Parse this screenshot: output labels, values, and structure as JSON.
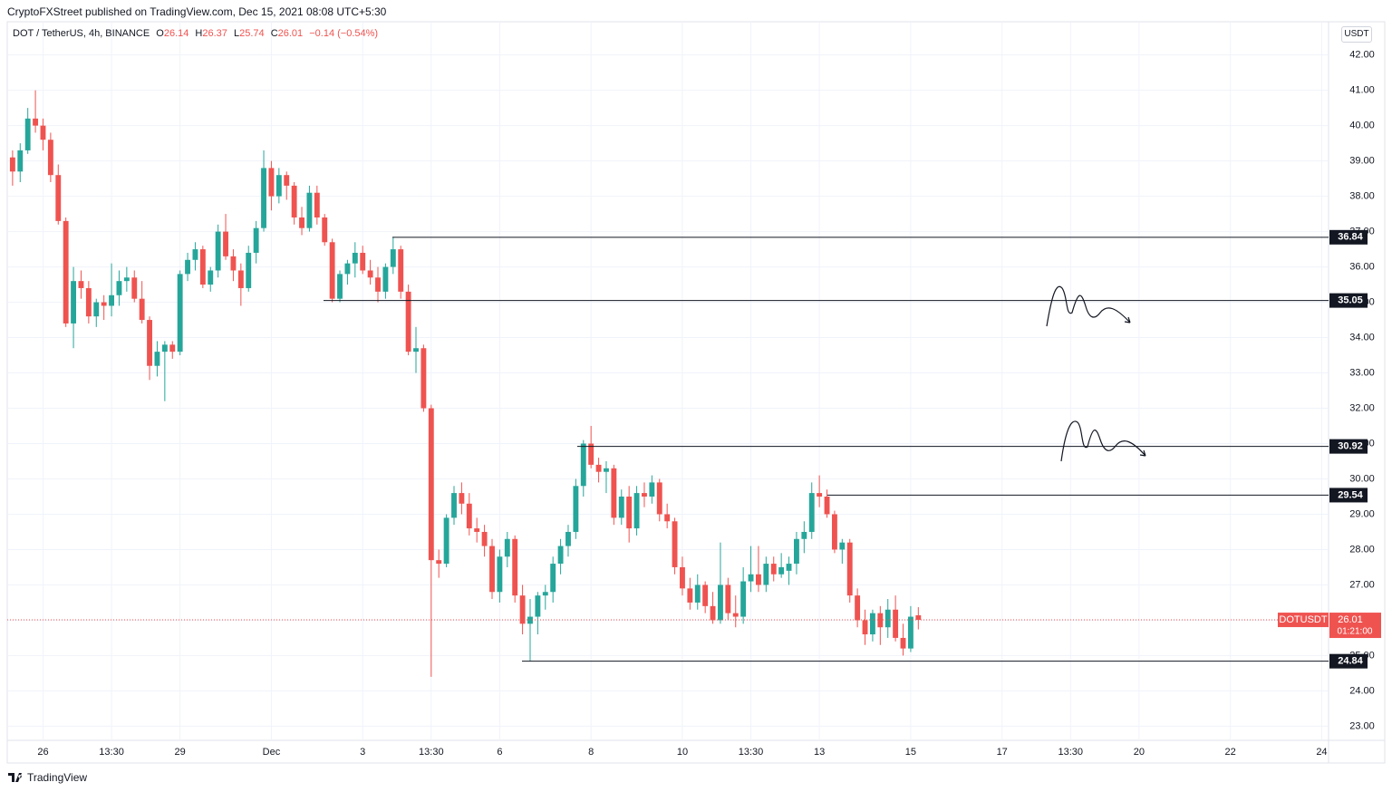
{
  "header": "CryptoFXStreet published on TradingView.com, Dec 15, 2021 08:08 UTC+5:30",
  "chart_data": {
    "type": "candlestick",
    "legend": {
      "symbol": "DOT / TetherUS, 4h, BINANCE",
      "ohlc": [
        {
          "label": "O",
          "value": 26.14
        },
        {
          "label": "H",
          "value": 26.37
        },
        {
          "label": "L",
          "value": 25.74
        },
        {
          "label": "C",
          "value": 26.01
        }
      ],
      "change": "−0.14 (−0.54%)"
    },
    "currency": "USDT",
    "up_color": "#26a69a",
    "down_color": "#ef5350",
    "open": [
      39.1,
      38.7,
      39.3,
      40.2,
      40.0,
      39.6,
      38.6,
      37.3,
      34.4,
      35.6,
      35.4,
      34.6,
      35.0,
      34.9,
      35.2,
      35.6,
      35.7,
      35.1,
      34.5,
      33.2,
      33.6,
      33.8,
      33.6,
      35.8,
      36.2,
      36.5,
      35.5,
      35.9,
      37.0,
      36.3,
      35.9,
      35.4,
      36.4,
      37.1,
      38.8,
      38.0,
      38.6,
      38.3,
      37.4,
      37.1,
      38.1,
      37.4,
      36.7,
      35.1,
      35.8,
      36.1,
      36.4,
      35.9,
      35.7,
      35.3,
      36.0,
      36.5,
      35.3,
      33.6,
      33.7,
      32.0,
      27.7,
      27.6,
      28.9,
      29.6,
      29.3,
      28.6,
      28.5,
      28.1,
      26.8,
      27.8,
      28.3,
      26.7,
      25.9,
      26.1,
      26.7,
      26.8,
      27.6,
      28.1,
      28.5,
      29.8,
      31.0,
      30.4,
      30.2,
      30.3,
      28.9,
      29.5,
      28.6,
      29.6,
      29.5,
      29.9,
      29.0,
      28.8,
      27.5,
      26.9,
      26.5,
      27.0,
      26.4,
      26.0,
      27.0,
      26.2,
      26.1,
      27.1,
      27.3,
      27.0,
      27.6,
      27.3,
      27.4,
      27.6,
      28.3,
      28.5,
      29.6,
      29.5,
      29.0,
      28.0,
      28.2,
      26.7,
      26.0,
      25.6,
      26.2,
      25.8,
      26.3,
      25.5,
      25.2,
      26.14
    ],
    "high": [
      39.3,
      39.5,
      40.5,
      41.0,
      40.2,
      39.8,
      38.9,
      37.4,
      36.0,
      35.9,
      35.6,
      35.1,
      35.2,
      36.1,
      35.9,
      36.0,
      35.9,
      35.6,
      34.6,
      33.9,
      33.9,
      33.9,
      35.9,
      36.4,
      36.7,
      36.6,
      36.0,
      37.2,
      37.5,
      36.5,
      36.1,
      36.6,
      37.3,
      39.3,
      39.0,
      38.8,
      38.7,
      38.4,
      37.7,
      38.3,
      38.3,
      37.5,
      36.8,
      35.9,
      36.2,
      36.7,
      36.6,
      36.2,
      36.0,
      36.1,
      36.84,
      36.6,
      35.5,
      34.3,
      33.8,
      32.1,
      28.0,
      29.0,
      29.8,
      29.9,
      29.6,
      28.9,
      28.7,
      28.3,
      28.0,
      28.5,
      28.4,
      27.0,
      26.6,
      26.8,
      27.0,
      27.8,
      28.3,
      28.7,
      30.0,
      31.1,
      31.5,
      30.6,
      30.5,
      30.4,
      29.7,
      29.8,
      29.8,
      29.9,
      30.1,
      30.0,
      29.3,
      28.9,
      27.8,
      27.2,
      27.3,
      27.1,
      26.8,
      28.2,
      27.2,
      26.7,
      27.5,
      28.1,
      28.1,
      27.8,
      27.8,
      27.9,
      27.8,
      28.5,
      28.8,
      29.9,
      30.1,
      29.7,
      29.1,
      28.3,
      28.3,
      26.9,
      26.3,
      26.3,
      26.4,
      26.6,
      26.7,
      25.9,
      26.4,
      26.37
    ],
    "low": [
      38.3,
      38.4,
      39.2,
      39.8,
      39.3,
      38.4,
      37.2,
      34.3,
      33.7,
      35.1,
      34.4,
      34.3,
      34.5,
      34.6,
      34.9,
      35.3,
      35.0,
      34.4,
      32.8,
      32.9,
      32.2,
      33.4,
      33.5,
      35.6,
      35.9,
      35.4,
      35.3,
      35.7,
      36.2,
      35.6,
      34.9,
      35.3,
      36.1,
      37.0,
      37.6,
      37.8,
      37.9,
      37.2,
      36.9,
      37.0,
      37.2,
      36.6,
      35.0,
      35.0,
      35.5,
      35.7,
      35.8,
      35.5,
      35.0,
      35.1,
      35.8,
      35.1,
      33.5,
      33.0,
      31.9,
      24.4,
      27.2,
      27.5,
      28.7,
      29.0,
      28.4,
      28.2,
      27.8,
      26.6,
      26.5,
      27.5,
      26.5,
      25.6,
      24.84,
      25.6,
      26.3,
      26.5,
      27.3,
      27.8,
      28.3,
      29.5,
      30.3,
      29.9,
      29.6,
      28.7,
      28.7,
      28.2,
      28.4,
      29.2,
      29.3,
      28.8,
      28.6,
      27.3,
      26.7,
      26.3,
      26.3,
      26.2,
      25.9,
      25.9,
      26.0,
      25.8,
      25.9,
      26.8,
      26.8,
      26.8,
      27.1,
      27.2,
      27.0,
      27.3,
      27.9,
      28.3,
      29.2,
      28.9,
      27.9,
      27.6,
      26.5,
      25.8,
      25.3,
      25.4,
      25.3,
      25.5,
      25.4,
      25.0,
      25.1,
      25.74
    ],
    "close": [
      38.7,
      39.3,
      40.2,
      40.0,
      39.6,
      38.6,
      37.3,
      34.4,
      35.6,
      35.4,
      34.6,
      35.0,
      34.9,
      35.2,
      35.6,
      35.7,
      35.1,
      34.5,
      33.2,
      33.6,
      33.8,
      33.6,
      35.8,
      36.2,
      36.5,
      35.5,
      35.9,
      37.0,
      36.3,
      35.9,
      35.4,
      36.4,
      37.1,
      38.8,
      38.0,
      38.6,
      38.3,
      37.4,
      37.1,
      38.1,
      37.4,
      36.7,
      35.1,
      35.8,
      36.1,
      36.4,
      35.9,
      35.7,
      35.3,
      36.0,
      36.5,
      35.3,
      33.6,
      33.7,
      32.0,
      27.7,
      27.6,
      28.9,
      29.6,
      29.3,
      28.6,
      28.5,
      28.1,
      26.8,
      27.8,
      28.3,
      26.7,
      25.9,
      26.1,
      26.7,
      26.8,
      27.6,
      28.1,
      28.5,
      29.8,
      31.0,
      30.4,
      30.2,
      30.3,
      28.9,
      29.5,
      28.6,
      29.6,
      29.5,
      29.9,
      29.0,
      28.8,
      27.5,
      26.9,
      26.5,
      27.0,
      26.4,
      26.0,
      27.0,
      26.2,
      26.1,
      27.1,
      27.3,
      27.0,
      27.6,
      27.3,
      27.5,
      27.6,
      28.3,
      28.5,
      29.6,
      29.5,
      29.0,
      28.0,
      28.2,
      26.7,
      26.0,
      25.6,
      26.2,
      25.8,
      26.3,
      25.5,
      25.2,
      26.1,
      26.01
    ],
    "levels": [
      36.84,
      35.05,
      30.92,
      29.54,
      24.84
    ],
    "last_price": {
      "symbol": "DOTUSDT",
      "value": 26.01,
      "countdown": "01:21:00"
    },
    "ylim": [
      22.6,
      42.94
    ],
    "yticks": [
      {
        "value": 23,
        "label": "23.00"
      },
      {
        "value": 24,
        "label": "24.00"
      },
      {
        "value": 25,
        "label": "25.00"
      },
      {
        "value": 26,
        "label": "26.00"
      },
      {
        "value": 27,
        "label": "27.00"
      },
      {
        "value": 28,
        "label": "28.00"
      },
      {
        "value": 29,
        "label": "29.00"
      },
      {
        "value": 30,
        "label": "30.00"
      },
      {
        "value": 31,
        "label": "31.00"
      },
      {
        "value": 32,
        "label": "32.00"
      },
      {
        "value": 33,
        "label": "33.00"
      },
      {
        "value": 34,
        "label": "34.00"
      },
      {
        "value": 35,
        "label": "35.00"
      },
      {
        "value": 36,
        "label": "36.00"
      },
      {
        "value": 37,
        "label": "37.00"
      },
      {
        "value": 38,
        "label": "38.00"
      },
      {
        "value": 39,
        "label": "39.00"
      },
      {
        "value": 40,
        "label": "40.00"
      },
      {
        "value": 41,
        "label": "41.00"
      },
      {
        "value": 42,
        "label": "42.00"
      }
    ],
    "xlim": [
      -0.7,
      172.9
    ],
    "xticks": [
      {
        "value": 4,
        "label": "26"
      },
      {
        "value": 13,
        "label": "13:30"
      },
      {
        "value": 22,
        "label": "29"
      },
      {
        "value": 34,
        "label": "Dec"
      },
      {
        "value": 46,
        "label": "3"
      },
      {
        "value": 55,
        "label": "13:30"
      },
      {
        "value": 64,
        "label": "6"
      },
      {
        "value": 76,
        "label": "8"
      },
      {
        "value": 88,
        "label": "10"
      },
      {
        "value": 97,
        "label": "13:30"
      },
      {
        "value": 106,
        "label": "13"
      },
      {
        "value": 118,
        "label": "15"
      },
      {
        "value": 130,
        "label": "17"
      },
      {
        "value": 139,
        "label": "13:30"
      },
      {
        "value": 148,
        "label": "20"
      },
      {
        "value": 160,
        "label": "22"
      },
      {
        "value": 172,
        "label": "24"
      }
    ],
    "grid": true
  },
  "footer": "TradingView"
}
